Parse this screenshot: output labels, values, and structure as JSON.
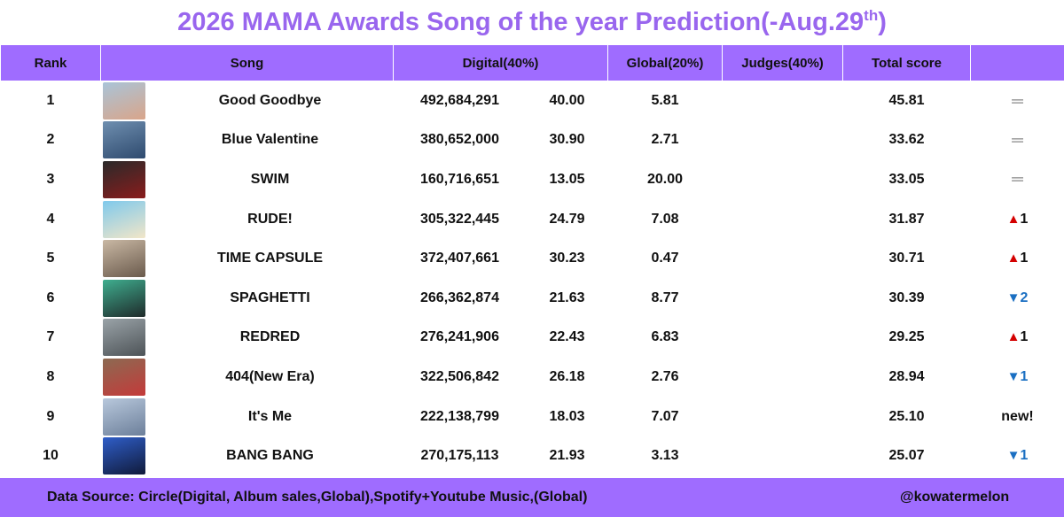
{
  "title": {
    "main": "2026 MAMA Awards Song of the year Prediction(-Aug.29",
    "sup": "th",
    "close": ")"
  },
  "columns": {
    "rank": "Rank",
    "song": "Song",
    "digital": "Digital(40%)",
    "global": "Global(20%)",
    "judges": "Judges(40%)",
    "total": "Total score",
    "change": ""
  },
  "rows": [
    {
      "rank": "1",
      "song": "Good Goodbye",
      "digital_count": "492,684,291",
      "digital_pct": "40.00",
      "global": "5.81",
      "judges": "",
      "total": "45.81",
      "change_type": "same",
      "change_symbol": "═",
      "change_value": "",
      "thumb_colors": [
        "#a9c4d8",
        "#d9a58a"
      ]
    },
    {
      "rank": "2",
      "song": "Blue Valentine",
      "digital_count": "380,652,000",
      "digital_pct": "30.90",
      "global": "2.71",
      "judges": "",
      "total": "33.62",
      "change_type": "same",
      "change_symbol": "═",
      "change_value": "",
      "thumb_colors": [
        "#6f8fb0",
        "#2e4a6e"
      ]
    },
    {
      "rank": "3",
      "song": "SWIM",
      "digital_count": "160,716,651",
      "digital_pct": "13.05",
      "global": "20.00",
      "judges": "",
      "total": "33.05",
      "change_type": "same",
      "change_symbol": "═",
      "change_value": "",
      "thumb_colors": [
        "#2a2a2a",
        "#8a1c1c"
      ]
    },
    {
      "rank": "4",
      "song": "RUDE!",
      "digital_count": "305,322,445",
      "digital_pct": "24.79",
      "global": "7.08",
      "judges": "",
      "total": "31.87",
      "change_type": "up",
      "change_symbol": "▲",
      "change_value": "1",
      "thumb_colors": [
        "#7fc9ec",
        "#f2e6c8"
      ]
    },
    {
      "rank": "5",
      "song": "TIME CAPSULE",
      "digital_count": "372,407,661",
      "digital_pct": "30.23",
      "global": "0.47",
      "judges": "",
      "total": "30.71",
      "change_type": "up",
      "change_symbol": "▲",
      "change_value": "1",
      "thumb_colors": [
        "#c9b8a4",
        "#6a5a4c"
      ]
    },
    {
      "rank": "6",
      "song": "SPAGHETTI",
      "digital_count": "266,362,874",
      "digital_pct": "21.63",
      "global": "8.77",
      "judges": "",
      "total": "30.39",
      "change_type": "down",
      "change_symbol": "▼",
      "change_value": "2",
      "thumb_colors": [
        "#3fae8f",
        "#1f2a2a"
      ]
    },
    {
      "rank": "7",
      "song": "REDRED",
      "digital_count": "276,241,906",
      "digital_pct": "22.43",
      "global": "6.83",
      "judges": "",
      "total": "29.25",
      "change_type": "up",
      "change_symbol": "▲",
      "change_value": "1",
      "thumb_colors": [
        "#9aa3a8",
        "#4d5357"
      ]
    },
    {
      "rank": "8",
      "song": "404(New Era)",
      "digital_count": "322,506,842",
      "digital_pct": "26.18",
      "global": "2.76",
      "judges": "",
      "total": "28.94",
      "change_type": "down",
      "change_symbol": "▼",
      "change_value": "1",
      "thumb_colors": [
        "#8c6a52",
        "#c43a3a"
      ]
    },
    {
      "rank": "9",
      "song": "It's Me",
      "digital_count": "222,138,799",
      "digital_pct": "18.03",
      "global": "7.07",
      "judges": "",
      "total": "25.10",
      "change_type": "new",
      "change_symbol": "",
      "change_value": "new!",
      "thumb_colors": [
        "#b8c8dc",
        "#6c7f9a"
      ]
    },
    {
      "rank": "10",
      "song": "BANG BANG",
      "digital_count": "270,175,113",
      "digital_pct": "21.93",
      "global": "3.13",
      "judges": "",
      "total": "25.07",
      "change_type": "down",
      "change_symbol": "▼",
      "change_value": "1",
      "thumb_colors": [
        "#2f5ec9",
        "#101a3a"
      ]
    }
  ],
  "footer": {
    "source": "Data Source: Circle(Digital, Album sales,Global),Spotify+Youtube Music,(Global)",
    "handle": "@kowatermelon"
  },
  "colors": {
    "header_bg": "#9f6cff",
    "title": "#9966ee",
    "up": "#d40000",
    "down": "#1a6fc2"
  }
}
